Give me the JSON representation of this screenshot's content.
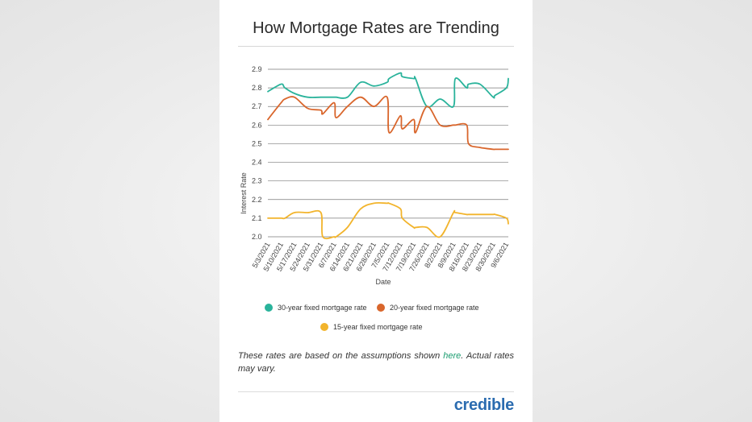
{
  "chart_data": {
    "type": "line",
    "title": "How Mortgage Rates are Trending",
    "xlabel": "Date",
    "ylabel": "Interest Rate",
    "ylim": [
      2.0,
      2.9
    ],
    "yticks": [
      2.0,
      2.1,
      2.2,
      2.3,
      2.4,
      2.5,
      2.6,
      2.7,
      2.8,
      2.9
    ],
    "grid": true,
    "legend": "bottom",
    "categories": [
      "5/3/2021",
      "5/10/2021",
      "5/17/2021",
      "5/24/2021",
      "5/31/2021",
      "6/7/2021",
      "6/14/2021",
      "6/21/2021",
      "6/28/2021",
      "7/5/2021",
      "7/12/2021",
      "7/19/2021",
      "7/26/2021",
      "8/2/2021",
      "8/9/2021",
      "8/16/2021",
      "8/23/2021",
      "8/30/2021",
      "9/6/2021"
    ],
    "x": [
      0,
      7,
      9,
      14,
      21,
      28,
      29,
      35,
      36,
      42,
      49,
      56,
      63,
      64,
      70,
      71,
      77,
      78,
      84,
      91,
      98,
      99,
      105,
      106,
      112,
      119,
      120,
      126,
      127
    ],
    "x_dates": [
      "5/3/2021",
      "5/10/2021",
      "5/12/2021",
      "5/17/2021",
      "5/24/2021",
      "5/31/2021",
      "6/1/2021",
      "6/7/2021",
      "6/8/2021",
      "6/14/2021",
      "6/21/2021",
      "6/28/2021",
      "7/5/2021",
      "7/6/2021",
      "7/12/2021",
      "7/13/2021",
      "7/19/2021",
      "7/20/2021",
      "7/26/2021",
      "8/2/2021",
      "8/9/2021",
      "8/10/2021",
      "8/16/2021",
      "8/17/2021",
      "8/23/2021",
      "8/30/2021",
      "8/31/2021",
      "9/6/2021",
      "9/7/2021"
    ],
    "series": [
      {
        "name": "30-year fixed mortgage rate",
        "color": "#2ab39b",
        "values": [
          2.78,
          2.82,
          2.8,
          2.77,
          2.75,
          2.75,
          2.75,
          2.75,
          2.75,
          2.75,
          2.83,
          2.81,
          2.83,
          2.85,
          2.88,
          2.86,
          2.85,
          2.85,
          2.7,
          2.74,
          2.7,
          2.85,
          2.8,
          2.82,
          2.82,
          2.75,
          2.76,
          2.8,
          2.85
        ]
      },
      {
        "name": "20-year fixed mortgage rate",
        "color": "#d9662c",
        "values": [
          2.63,
          2.72,
          2.74,
          2.75,
          2.69,
          2.68,
          2.66,
          2.72,
          2.64,
          2.7,
          2.75,
          2.7,
          2.75,
          2.56,
          2.65,
          2.58,
          2.63,
          2.56,
          2.7,
          2.6,
          2.6,
          2.6,
          2.6,
          2.5,
          2.48,
          2.47,
          2.47,
          2.47,
          2.47
        ]
      },
      {
        "name": "15-year fixed mortgage rate",
        "color": "#f2b42c",
        "values": [
          2.1,
          2.1,
          2.1,
          2.13,
          2.13,
          2.13,
          2.0,
          2.0,
          2.0,
          2.05,
          2.15,
          2.18,
          2.18,
          2.18,
          2.15,
          2.1,
          2.05,
          2.05,
          2.05,
          2.0,
          2.13,
          2.13,
          2.12,
          2.12,
          2.12,
          2.12,
          2.12,
          2.1,
          2.07
        ]
      }
    ]
  },
  "note": {
    "before": "These rates are based on the assumptions shown ",
    "link": "here",
    "after": ". Actual rates may vary."
  },
  "brand": {
    "logo_text": "credible",
    "logo_color": "#2b6cb0"
  }
}
